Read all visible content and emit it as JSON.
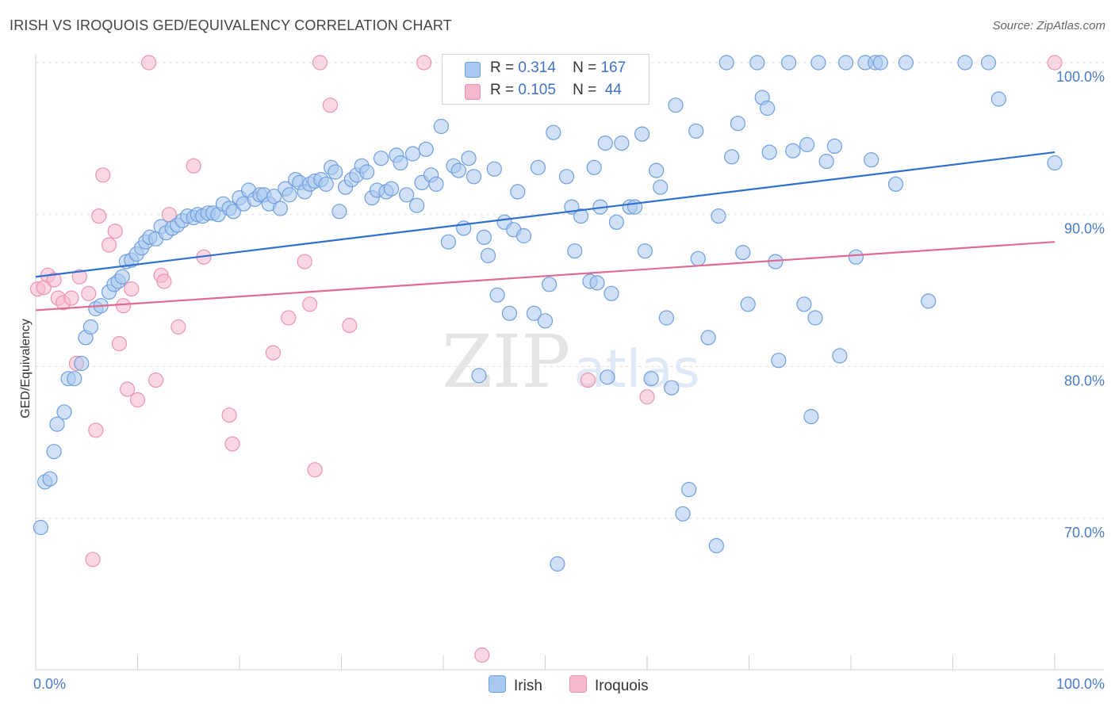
{
  "title": "IRISH VS IROQUOIS GED/EQUIVALENCY CORRELATION CHART",
  "source": "Source: ZipAtlas.com",
  "legend": {
    "rows": [
      {
        "r_label": "R =",
        "r_value": "0.314",
        "n_label": "N =",
        "n_value": "167"
      },
      {
        "r_label": "R =",
        "r_value": "0.105",
        "n_label": "N =",
        "n_value": "44"
      }
    ]
  },
  "bottom_legend": [
    "Irish",
    "Iroquois"
  ],
  "colors": {
    "irish_fill": "#a9c8f0",
    "irish_stroke": "#6f9fdd",
    "irish_line": "#2f6fce",
    "iroquois_fill": "#f6b8cc",
    "iroquois_stroke": "#ec93b1",
    "iroquois_line": "#e06a93",
    "tick": "#4a7cc7",
    "grid": "#dddddd"
  },
  "chart_data": {
    "type": "scatter",
    "title": "IRISH VS IROQUOIS GED/EQUIVALENCY CORRELATION CHART",
    "xlabel": "",
    "ylabel": "GED/Equivalency",
    "xlim": [
      0,
      100
    ],
    "ylim": [
      61,
      101.5
    ],
    "y_ticks": [
      {
        "v": 70,
        "label": "70.0%"
      },
      {
        "v": 80,
        "label": "80.0%"
      },
      {
        "v": 90,
        "label": "90.0%"
      },
      {
        "v": 100,
        "label": "100.0%"
      }
    ],
    "x_ticks": [
      {
        "v": 0,
        "label": "0.0%"
      },
      {
        "v": 100,
        "label": "100.0%"
      }
    ],
    "grid": true,
    "watermark": "ZIPatlas",
    "series": [
      {
        "name": "Irish",
        "trend": {
          "x0": 0,
          "y0": 85.9,
          "x1": 100,
          "y1": 94.1
        },
        "points": [
          [
            0.5,
            69.4
          ],
          [
            0.9,
            72.4
          ],
          [
            1.4,
            72.6
          ],
          [
            1.8,
            74.4
          ],
          [
            2.1,
            76.2
          ],
          [
            2.8,
            77.0
          ],
          [
            3.2,
            79.2
          ],
          [
            3.8,
            79.2
          ],
          [
            4.5,
            80.2
          ],
          [
            4.9,
            81.9
          ],
          [
            5.4,
            82.6
          ],
          [
            5.9,
            83.8
          ],
          [
            6.4,
            84.0
          ],
          [
            7.2,
            84.9
          ],
          [
            7.7,
            85.4
          ],
          [
            8.1,
            85.6
          ],
          [
            8.5,
            85.9
          ],
          [
            8.9,
            86.9
          ],
          [
            9.4,
            87.0
          ],
          [
            9.9,
            87.4
          ],
          [
            10.4,
            87.8
          ],
          [
            10.8,
            88.2
          ],
          [
            11.2,
            88.5
          ],
          [
            11.8,
            88.4
          ],
          [
            12.3,
            89.2
          ],
          [
            12.8,
            88.8
          ],
          [
            13.4,
            89.1
          ],
          [
            13.9,
            89.3
          ],
          [
            14.4,
            89.6
          ],
          [
            14.9,
            89.9
          ],
          [
            15.5,
            89.8
          ],
          [
            15.9,
            90.0
          ],
          [
            16.4,
            89.9
          ],
          [
            16.9,
            90.1
          ],
          [
            17.4,
            90.1
          ],
          [
            17.9,
            90.0
          ],
          [
            18.4,
            90.7
          ],
          [
            19.0,
            90.4
          ],
          [
            19.4,
            90.2
          ],
          [
            20.0,
            91.1
          ],
          [
            20.4,
            90.7
          ],
          [
            20.9,
            91.6
          ],
          [
            21.5,
            91.0
          ],
          [
            22.0,
            91.3
          ],
          [
            22.4,
            91.3
          ],
          [
            22.9,
            90.7
          ],
          [
            23.4,
            91.2
          ],
          [
            24.0,
            90.4
          ],
          [
            24.5,
            91.7
          ],
          [
            24.9,
            91.3
          ],
          [
            25.5,
            92.3
          ],
          [
            25.9,
            92.1
          ],
          [
            26.4,
            91.5
          ],
          [
            26.9,
            92.0
          ],
          [
            27.4,
            92.2
          ],
          [
            28.0,
            92.3
          ],
          [
            28.5,
            92.0
          ],
          [
            29.0,
            93.1
          ],
          [
            29.4,
            92.8
          ],
          [
            29.8,
            90.2
          ],
          [
            30.4,
            91.8
          ],
          [
            31.0,
            92.3
          ],
          [
            31.5,
            92.6
          ],
          [
            32.0,
            93.2
          ],
          [
            32.5,
            92.8
          ],
          [
            33.0,
            91.1
          ],
          [
            33.5,
            91.6
          ],
          [
            33.9,
            93.7
          ],
          [
            34.4,
            91.5
          ],
          [
            34.9,
            91.7
          ],
          [
            35.4,
            93.9
          ],
          [
            35.8,
            93.4
          ],
          [
            36.4,
            91.3
          ],
          [
            37.0,
            94.0
          ],
          [
            37.4,
            90.6
          ],
          [
            37.9,
            92.1
          ],
          [
            38.3,
            94.3
          ],
          [
            38.8,
            92.6
          ],
          [
            39.3,
            92.0
          ],
          [
            39.8,
            95.8
          ],
          [
            40.5,
            88.2
          ],
          [
            41.0,
            93.2
          ],
          [
            41.5,
            92.9
          ],
          [
            42.0,
            89.1
          ],
          [
            42.5,
            93.7
          ],
          [
            43.0,
            92.5
          ],
          [
            43.5,
            79.4
          ],
          [
            44.0,
            88.5
          ],
          [
            44.4,
            87.3
          ],
          [
            45.0,
            93.0
          ],
          [
            45.3,
            84.7
          ],
          [
            46.0,
            89.5
          ],
          [
            46.5,
            83.5
          ],
          [
            46.9,
            89.0
          ],
          [
            47.3,
            91.5
          ],
          [
            47.9,
            88.6
          ],
          [
            48.9,
            83.5
          ],
          [
            49.3,
            93.1
          ],
          [
            50.0,
            83.0
          ],
          [
            50.4,
            85.4
          ],
          [
            50.8,
            95.4
          ],
          [
            51.2,
            67.0
          ],
          [
            52.1,
            92.5
          ],
          [
            52.6,
            90.5
          ],
          [
            52.9,
            87.6
          ],
          [
            53.5,
            89.9
          ],
          [
            54.4,
            85.6
          ],
          [
            54.8,
            93.1
          ],
          [
            55.1,
            85.5
          ],
          [
            55.4,
            90.5
          ],
          [
            55.9,
            94.7
          ],
          [
            56.1,
            79.3
          ],
          [
            56.5,
            84.8
          ],
          [
            57.0,
            89.5
          ],
          [
            57.5,
            94.7
          ],
          [
            58.3,
            90.5
          ],
          [
            58.8,
            90.5
          ],
          [
            59.0,
            100.0
          ],
          [
            59.5,
            95.3
          ],
          [
            59.8,
            87.6
          ],
          [
            60.4,
            79.2
          ],
          [
            60.9,
            92.9
          ],
          [
            61.3,
            91.8
          ],
          [
            61.9,
            83.2
          ],
          [
            62.4,
            78.6
          ],
          [
            62.8,
            97.2
          ],
          [
            63.5,
            70.3
          ],
          [
            64.1,
            71.9
          ],
          [
            64.8,
            95.5
          ],
          [
            65.0,
            87.1
          ],
          [
            66.0,
            81.9
          ],
          [
            66.8,
            68.2
          ],
          [
            67.0,
            89.9
          ],
          [
            67.8,
            100.0
          ],
          [
            68.3,
            93.8
          ],
          [
            68.9,
            96.0
          ],
          [
            69.4,
            87.5
          ],
          [
            69.9,
            84.1
          ],
          [
            70.8,
            100.0
          ],
          [
            71.3,
            97.7
          ],
          [
            71.8,
            97.0
          ],
          [
            72.0,
            94.1
          ],
          [
            72.6,
            86.9
          ],
          [
            72.9,
            80.4
          ],
          [
            73.9,
            100.0
          ],
          [
            74.3,
            94.2
          ],
          [
            75.4,
            84.1
          ],
          [
            75.7,
            94.6
          ],
          [
            76.1,
            76.7
          ],
          [
            76.5,
            83.2
          ],
          [
            76.8,
            100.0
          ],
          [
            77.6,
            93.5
          ],
          [
            78.4,
            94.5
          ],
          [
            78.9,
            80.7
          ],
          [
            79.5,
            100.0
          ],
          [
            80.5,
            87.2
          ],
          [
            81.4,
            100.0
          ],
          [
            82.0,
            93.6
          ],
          [
            82.4,
            100.0
          ],
          [
            82.9,
            100.0
          ],
          [
            84.4,
            92.0
          ],
          [
            85.4,
            100.0
          ],
          [
            87.6,
            84.3
          ],
          [
            91.2,
            100.0
          ],
          [
            93.5,
            100.0
          ],
          [
            94.5,
            97.6
          ],
          [
            100.0,
            93.4
          ]
        ]
      },
      {
        "name": "Iroquois",
        "trend": {
          "x0": 0,
          "y0": 83.7,
          "x1": 100,
          "y1": 88.2
        },
        "points": [
          [
            0.2,
            85.1
          ],
          [
            0.8,
            85.2
          ],
          [
            1.2,
            86.0
          ],
          [
            1.8,
            85.7
          ],
          [
            2.2,
            84.5
          ],
          [
            2.7,
            84.2
          ],
          [
            3.5,
            84.5
          ],
          [
            4.0,
            80.2
          ],
          [
            4.3,
            85.9
          ],
          [
            5.2,
            84.8
          ],
          [
            5.6,
            67.3
          ],
          [
            5.9,
            75.8
          ],
          [
            6.2,
            89.9
          ],
          [
            6.6,
            92.6
          ],
          [
            7.2,
            88.0
          ],
          [
            7.8,
            88.9
          ],
          [
            8.2,
            81.5
          ],
          [
            8.6,
            84.0
          ],
          [
            9.0,
            78.5
          ],
          [
            9.4,
            85.1
          ],
          [
            10.0,
            77.8
          ],
          [
            11.1,
            100.0
          ],
          [
            11.8,
            79.1
          ],
          [
            12.3,
            86.0
          ],
          [
            12.6,
            85.6
          ],
          [
            13.1,
            90.0
          ],
          [
            14.0,
            82.6
          ],
          [
            15.5,
            93.2
          ],
          [
            16.5,
            87.2
          ],
          [
            19.0,
            76.8
          ],
          [
            19.3,
            74.9
          ],
          [
            23.3,
            80.9
          ],
          [
            24.8,
            83.2
          ],
          [
            26.4,
            86.9
          ],
          [
            26.9,
            84.1
          ],
          [
            27.4,
            73.2
          ],
          [
            27.9,
            100.0
          ],
          [
            28.9,
            97.2
          ],
          [
            30.8,
            82.7
          ],
          [
            38.1,
            100.0
          ],
          [
            43.8,
            61.0
          ],
          [
            54.2,
            79.1
          ],
          [
            60.0,
            78.0
          ],
          [
            100.0,
            100.0
          ]
        ]
      }
    ]
  }
}
